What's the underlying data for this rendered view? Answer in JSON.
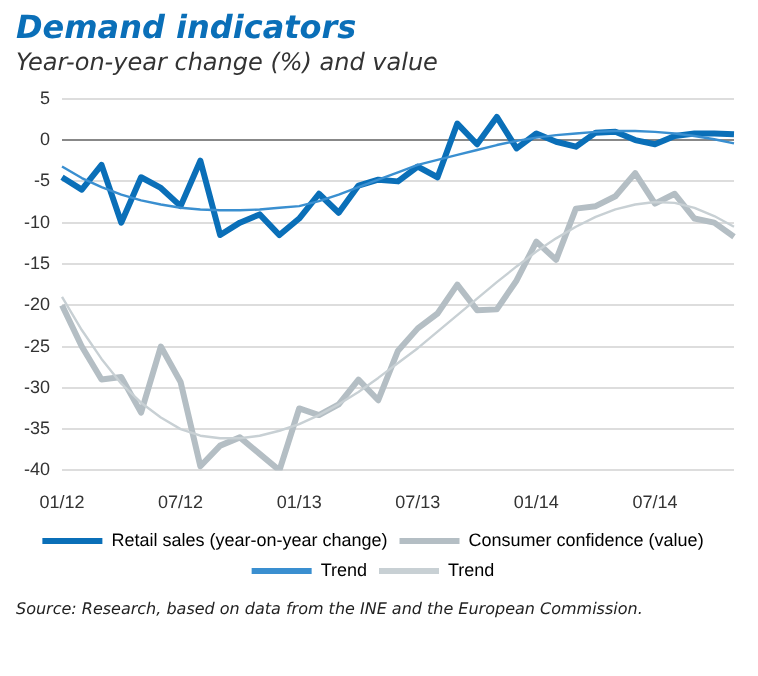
{
  "chart_data": {
    "type": "line",
    "title": "Demand indicators",
    "subtitle": "Year-on-year change (%) and value",
    "categories": [
      "01/12",
      null,
      null,
      null,
      null,
      null,
      "07/12",
      null,
      null,
      null,
      null,
      null,
      "01/13",
      null,
      null,
      null,
      null,
      null,
      "07/13",
      null,
      null,
      null,
      null,
      null,
      "01/14",
      null,
      null,
      null,
      null,
      null,
      "07/14",
      null,
      null,
      null,
      null
    ],
    "series": [
      {
        "name": "Retail sales (year-on-year change)",
        "color": "#0a6fb8",
        "values": [
          -4.5,
          -6,
          -3,
          -10,
          -4.5,
          -5.8,
          -8,
          -2.5,
          -11.5,
          -10,
          -9,
          -11.5,
          -9.5,
          -6.5,
          -8.8,
          -5.5,
          -4.8,
          -5,
          -3.2,
          -4.5,
          2,
          -0.5,
          2.8,
          -1,
          0.8,
          -0.2,
          -0.8,
          0.9,
          1,
          0,
          -0.5,
          0.5,
          0.8,
          0.8,
          0.7
        ]
      },
      {
        "name": "Consumer confidence (value)",
        "color": "#b4bec4",
        "values": [
          -20,
          -25,
          -29,
          -28.7,
          -33,
          -25,
          -29.3,
          -39.5,
          -37,
          -36,
          -38,
          -40,
          -32.5,
          -33.3,
          -32,
          -29,
          -31.5,
          -25.5,
          -22.8,
          -21,
          -17.5,
          -20.6,
          -20.5,
          -17,
          -12.3,
          -14.5,
          -8.3,
          -8,
          -6.8,
          -4,
          -7.7,
          -6.5,
          -9.5,
          -10,
          -11.7
        ]
      },
      {
        "name": "Trend",
        "color": "#3a8fd0",
        "values": [
          -3.2,
          -4.6,
          -5.7,
          -6.6,
          -7.3,
          -7.8,
          -8.2,
          -8.4,
          -8.5,
          -8.5,
          -8.4,
          -8.2,
          -8,
          -7.4,
          -6.6,
          -5.7,
          -4.8,
          -3.9,
          -3,
          -2.4,
          -1.8,
          -1.2,
          -0.6,
          -0.1,
          0.3,
          0.6,
          0.8,
          1,
          1.1,
          1.1,
          1,
          0.8,
          0.5,
          0.1,
          -0.4
        ]
      },
      {
        "name": "Trend",
        "color": "#c8d0d4",
        "values": [
          -19,
          -23,
          -26.5,
          -29.5,
          -31.8,
          -33.6,
          -35,
          -35.8,
          -36.1,
          -36.1,
          -35.8,
          -35.2,
          -34.4,
          -33.3,
          -32,
          -30.5,
          -28.8,
          -27,
          -25.2,
          -23.2,
          -21.2,
          -19.2,
          -17.2,
          -15.3,
          -13.5,
          -11.9,
          -10.5,
          -9.3,
          -8.4,
          -7.8,
          -7.5,
          -7.6,
          -8.2,
          -9.2,
          -10.5
        ]
      }
    ],
    "ylim": [
      -40,
      5
    ],
    "yticks": [
      -40,
      -35,
      -30,
      -25,
      -20,
      -15,
      -10,
      -5,
      0,
      5
    ],
    "grid": "y",
    "legend": "bottom",
    "marker": "none",
    "line_style": "solid",
    "annotations": [
      "Source: Research, based on data from the INE and the European Commission."
    ]
  }
}
